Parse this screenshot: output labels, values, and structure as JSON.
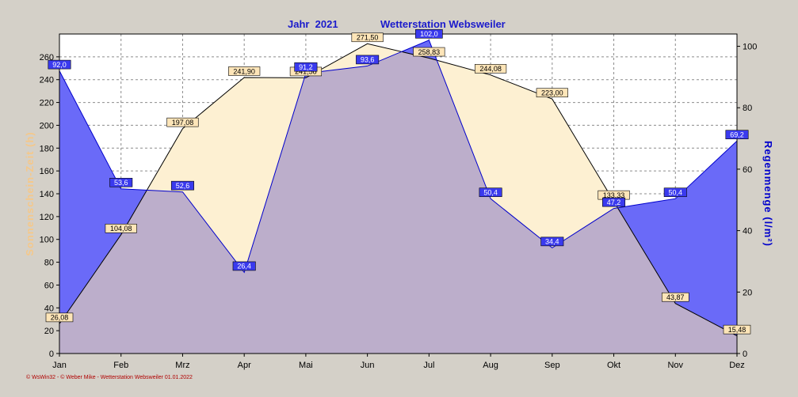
{
  "header": {
    "year_label": "Jahr  2021",
    "station_label": "Wetterstation Websweiler"
  },
  "footer": {
    "text": "© WsWin32 - © Weber Mike - Wetterstation Websweiler 01.01.2022"
  },
  "colors": {
    "background": "#d4d0c8",
    "plot_bg": "#ffffff",
    "grid": "#8c8c8c",
    "sun_fill": "#fdf0d2",
    "sun_line": "#000000",
    "sun_label_bg": "#fde5b8",
    "sun_axis_label": "#f5c88a",
    "rain_fill": "#6a6af8",
    "rain_line": "#0000cc",
    "rain_label_bg": "#3a3aee",
    "rain_axis_label": "#0000cc",
    "overlap_fill": "#bcaecb",
    "title": "#1a1acc",
    "footer": "#b00000"
  },
  "chart_data": {
    "type": "area",
    "categories": [
      "Jan",
      "Feb",
      "Mrz",
      "Apr",
      "Mai",
      "Jun",
      "Jul",
      "Aug",
      "Sep",
      "Okt",
      "Nov",
      "Dez"
    ],
    "x_tick_labels": [
      "Jan",
      "Feb",
      "Mrz",
      "Apr",
      "Mai",
      "Jun",
      "Jul",
      "Aug",
      "Sep",
      "Okt",
      "Nov",
      "Dez"
    ],
    "left_axis": {
      "label": "Sonnenschein-Zeit  (h)",
      "ylim": [
        0,
        280
      ],
      "ticks": [
        "0",
        "20",
        "40",
        "60",
        "80",
        "100",
        "120",
        "140",
        "160",
        "180",
        "200",
        "220",
        "240",
        "260"
      ],
      "tick_values": [
        0,
        20,
        40,
        60,
        80,
        100,
        120,
        140,
        160,
        180,
        200,
        220,
        240,
        260
      ]
    },
    "right_axis": {
      "label": "Regenmenge  (l/m²)",
      "ylim": [
        0,
        104
      ],
      "ticks": [
        "0",
        "20",
        "40",
        "60",
        "80",
        "100"
      ],
      "tick_values": [
        0,
        20,
        40,
        60,
        80,
        100
      ]
    },
    "series": [
      {
        "axis": "left",
        "values": [
          26.08,
          104.08,
          197.08,
          241.9,
          241.58,
          271.5,
          258.83,
          244.08,
          223.0,
          133.33,
          43.87,
          15.48
        ],
        "labels": [
          "26,08",
          "104,08",
          "197,08",
          "241,90",
          "241,58",
          "271,50",
          "258,83",
          "244,08",
          "223,00",
          "133,33",
          "43,87",
          "15,48"
        ]
      },
      {
        "axis": "right",
        "values": [
          92.0,
          53.6,
          52.6,
          26.4,
          91.2,
          93.6,
          102.0,
          50.4,
          34.4,
          47.2,
          50.4,
          69.2
        ],
        "labels": [
          "92,0",
          "53,6",
          "52,6",
          "26,4",
          "91,2",
          "93,6",
          "102,0",
          "50,4",
          "34,4",
          "47,2",
          "50,4",
          "69,2"
        ]
      }
    ],
    "grid": true,
    "legend": "none"
  }
}
